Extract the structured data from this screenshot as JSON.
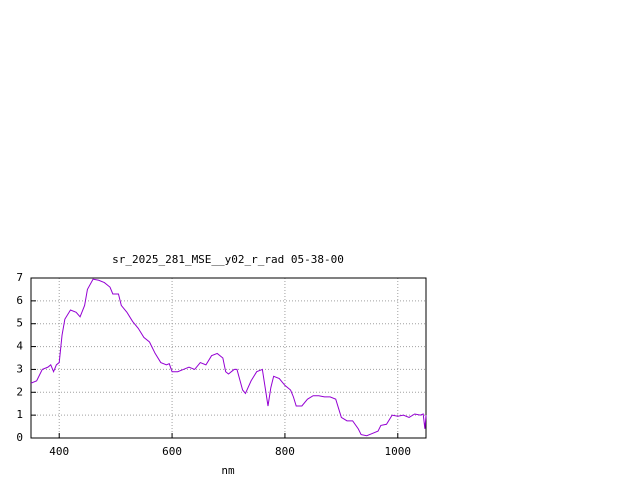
{
  "chart_data": {
    "type": "line",
    "title": "sr_2025_281_MSE__y02_r_rad 05-38-00",
    "x_label": "nm",
    "x": [
      350,
      360,
      370,
      380,
      385,
      390,
      395,
      400,
      405,
      410,
      420,
      430,
      437,
      445,
      450,
      460,
      470,
      480,
      490,
      495,
      505,
      510,
      520,
      530,
      540,
      550,
      560,
      570,
      580,
      590,
      595,
      600,
      610,
      620,
      630,
      640,
      650,
      660,
      670,
      680,
      690,
      695,
      700,
      710,
      715,
      725,
      730,
      740,
      750,
      760,
      765,
      770,
      775,
      780,
      790,
      800,
      810,
      815,
      820,
      830,
      840,
      850,
      860,
      870,
      880,
      890,
      895,
      900,
      910,
      920,
      930,
      935,
      945,
      955,
      965,
      970,
      980,
      990,
      1000,
      1010,
      1020,
      1030,
      1040,
      1045,
      1048,
      1050
    ],
    "series": [
      {
        "name": "sr_2025_281_MSE__y02_r_rad",
        "color": "#9400d3",
        "values": [
          2.4,
          2.5,
          3.0,
          3.1,
          3.2,
          2.9,
          3.2,
          3.3,
          4.5,
          5.2,
          5.6,
          5.5,
          5.3,
          5.8,
          6.5,
          6.95,
          6.9,
          6.8,
          6.6,
          6.3,
          6.3,
          5.8,
          5.5,
          5.1,
          4.8,
          4.4,
          4.2,
          3.7,
          3.3,
          3.2,
          3.25,
          2.9,
          2.9,
          3.0,
          3.1,
          3.0,
          3.3,
          3.2,
          3.6,
          3.7,
          3.5,
          2.9,
          2.8,
          3.0,
          3.0,
          2.1,
          1.95,
          2.5,
          2.9,
          3.0,
          2.2,
          1.4,
          2.2,
          2.7,
          2.6,
          2.3,
          2.1,
          1.8,
          1.4,
          1.4,
          1.7,
          1.85,
          1.85,
          1.8,
          1.8,
          1.7,
          1.3,
          0.9,
          0.75,
          0.75,
          0.4,
          0.15,
          0.1,
          0.2,
          0.3,
          0.55,
          0.6,
          1.0,
          0.95,
          1.0,
          0.9,
          1.05,
          1.0,
          1.05,
          0.4,
          1.0
        ]
      }
    ],
    "xlim": [
      350,
      1050
    ],
    "ylim": [
      0,
      7
    ],
    "xticks": [
      400,
      600,
      800,
      1000
    ],
    "yticks": [
      0,
      1,
      2,
      3,
      4,
      5,
      6,
      7
    ],
    "grid": true
  }
}
